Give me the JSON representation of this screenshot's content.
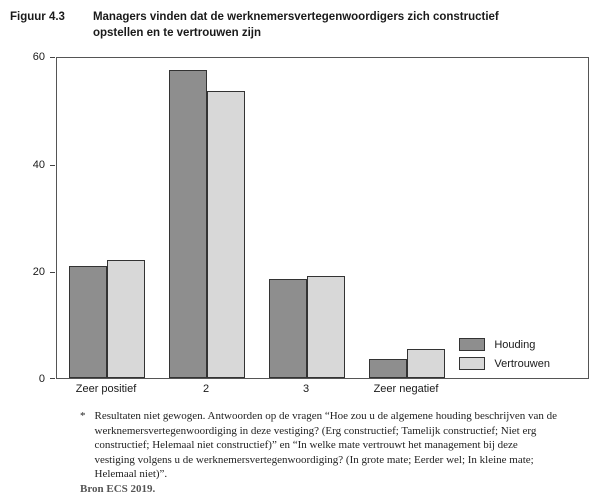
{
  "header": {
    "figure_label": "Figuur 4.3",
    "title": "Managers vinden dat de werknemersvertegenwoordigers zich constructief opstellen en te vertrouwen zijn"
  },
  "chart_data": {
    "type": "bar",
    "categories": [
      "Zeer positief",
      "2",
      "3",
      "Zeer negatief"
    ],
    "series": [
      {
        "name": "Houding",
        "color": "#8e8e8e",
        "values": [
          21,
          57.5,
          18.5,
          3.5
        ]
      },
      {
        "name": "Vertrouwen",
        "color": "#d8d8d8",
        "values": [
          22,
          53.5,
          19,
          5.5
        ]
      }
    ],
    "title": "Managers vinden dat de werknemersvertegenwoordigers zich constructief opstellen en te vertrouwen zijn",
    "xlabel": "",
    "ylabel": "",
    "ylim": [
      0,
      60
    ],
    "yticks": [
      0,
      20,
      40,
      60
    ],
    "grid": false,
    "legend_position": "inside-bottom-right"
  },
  "footnote": {
    "marker": "*",
    "text": "Resultaten niet gewogen. Antwoorden op de vragen “Hoe zou u de algemene houding beschrijven van de werknemersvertegenwoordiging in deze vestiging? (Erg constructief; Tamelijk constructief; Niet erg constructief; Helemaal niet constructief)” en “In welke mate vertrouwt het management bij deze vestiging volgens u de werknemersvertegenwoordiging? (In grote mate; Eerder wel; In kleine mate; Helemaal niet)”.",
    "source": "Bron ECS 2019."
  }
}
